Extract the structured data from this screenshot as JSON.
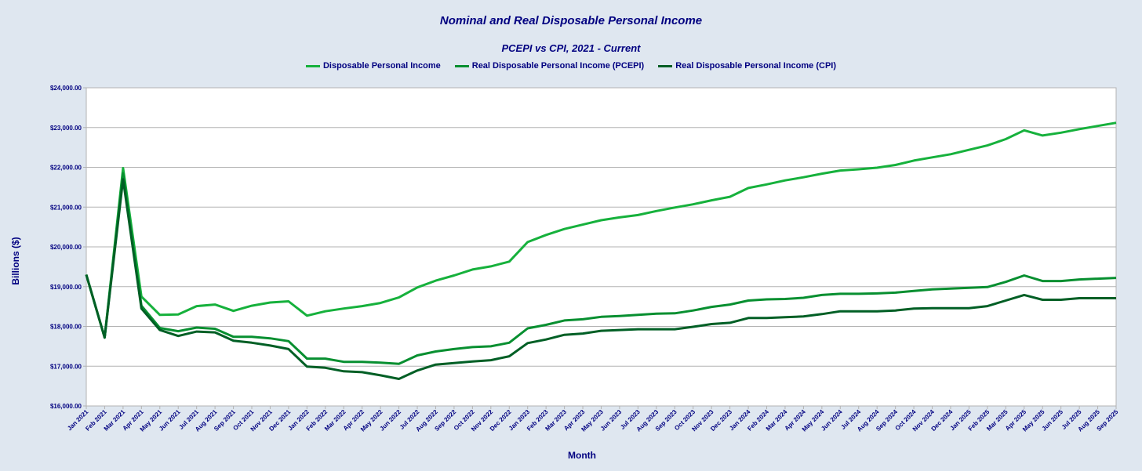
{
  "chart_data": {
    "type": "line",
    "title": "Nominal and Real Disposable Personal Income",
    "subtitle": "PCEPI vs CPI, 2021 - Current",
    "xlabel": "Month",
    "ylabel": "Billions ($)",
    "ylim": [
      16000,
      24000
    ],
    "yticks": [
      "$16,000.00",
      "$17,000.00",
      "$18,000.00",
      "$19,000.00",
      "$20,000.00",
      "$21,000.00",
      "$22,000.00",
      "$23,000.00",
      "$24,000.00"
    ],
    "grid": true,
    "legend_position": "top",
    "categories": [
      "Jan 2021",
      "Feb 2021",
      "Mar 2021",
      "Apr 2021",
      "May 2021",
      "Jun 2021",
      "Jul 2021",
      "Aug 2021",
      "Sep 2021",
      "Oct 2021",
      "Nov 2021",
      "Dec 2021",
      "Jan 2022",
      "Feb 2022",
      "Mar 2022",
      "Apr 2022",
      "May 2022",
      "Jun 2022",
      "Jul 2022",
      "Aug 2022",
      "Sep 2022",
      "Oct 2022",
      "Nov 2022",
      "Dec 2022",
      "Jan 2023",
      "Feb 2023",
      "Mar 2023",
      "Apr 2023",
      "May 2023",
      "Jun 2023",
      "Jul 2023",
      "Aug 2023",
      "Sep 2023",
      "Oct 2023",
      "Nov 2023",
      "Dec 2023",
      "Jan 2024",
      "Feb 2024",
      "Mar 2024",
      "Apr 2024",
      "May 2024",
      "Jun 2024",
      "Jul 2024",
      "Aug 2024",
      "Sep 2024",
      "Oct 2024",
      "Nov 2024",
      "Dec 2024",
      "Jan 2025",
      "Feb 2025",
      "Mar 2025",
      "Apr 2025",
      "May 2025",
      "Jun 2025",
      "Jul 2025",
      "Aug 2025",
      "Sep 2025"
    ],
    "series": [
      {
        "name": "Disposable Personal Income",
        "color": "#16b13c",
        "values": [
          19300,
          17720,
          21980,
          18750,
          18290,
          18300,
          18510,
          18550,
          18390,
          18520,
          18600,
          18630,
          18270,
          18380,
          18450,
          18510,
          18590,
          18730,
          18980,
          19150,
          19280,
          19430,
          19510,
          19630,
          20120,
          20300,
          20450,
          20560,
          20670,
          20740,
          20800,
          20900,
          20990,
          21070,
          21170,
          21260,
          21480,
          21570,
          21670,
          21750,
          21840,
          21920,
          21950,
          21990,
          22060,
          22170,
          22250,
          22330,
          22440,
          22550,
          22710,
          22930,
          22800,
          22870,
          22960,
          23040,
          23120
        ]
      },
      {
        "name": "Real Disposable Personal Income (PCEPI)",
        "color": "#078f30",
        "values": [
          19300,
          17720,
          21850,
          18520,
          17960,
          17880,
          17970,
          17940,
          17740,
          17740,
          17700,
          17630,
          17190,
          17190,
          17110,
          17110,
          17090,
          17060,
          17270,
          17370,
          17430,
          17480,
          17500,
          17590,
          17950,
          18040,
          18150,
          18180,
          18240,
          18260,
          18290,
          18320,
          18330,
          18400,
          18490,
          18550,
          18650,
          18680,
          18690,
          18720,
          18790,
          18820,
          18820,
          18830,
          18850,
          18890,
          18930,
          18950,
          18970,
          18990,
          19120,
          19280,
          19140,
          19140,
          19180,
          19200,
          19220
        ]
      },
      {
        "name": "Real Disposable Personal Income (CPI)",
        "color": "#005f25",
        "values": [
          19300,
          17720,
          21700,
          18450,
          17910,
          17760,
          17870,
          17850,
          17640,
          17590,
          17520,
          17430,
          16990,
          16960,
          16870,
          16850,
          16770,
          16680,
          16890,
          17040,
          17080,
          17120,
          17150,
          17250,
          17580,
          17670,
          17790,
          17820,
          17890,
          17910,
          17930,
          17930,
          17930,
          17990,
          18060,
          18090,
          18210,
          18210,
          18230,
          18250,
          18310,
          18380,
          18380,
          18380,
          18400,
          18450,
          18460,
          18460,
          18460,
          18510,
          18650,
          18790,
          18670,
          18670,
          18710,
          18710,
          18710
        ]
      }
    ]
  }
}
